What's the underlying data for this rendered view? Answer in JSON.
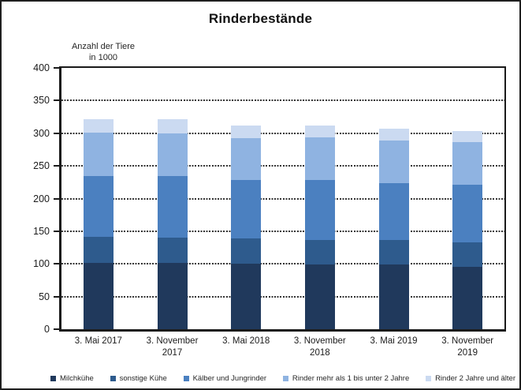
{
  "chart": {
    "title": "Rinderbestände",
    "unit_label_line1": "Anzahl der Tiere",
    "unit_label_line2": "in 1000"
  },
  "chart_data": {
    "type": "bar",
    "stacked": true,
    "title": "Rinderbestände",
    "ylabel": "Anzahl der Tiere in 1000",
    "xlabel": "",
    "ylim": [
      0,
      400
    ],
    "yticks": [
      0,
      50,
      100,
      150,
      200,
      250,
      300,
      350,
      400
    ],
    "grid": "horizontal-dotted",
    "legend_position": "bottom",
    "categories": [
      "3. Mai 2017",
      "3. November 2017",
      "3. Mai 2018",
      "3. November 2018",
      "3. Mai 2019",
      "3. November 2019"
    ],
    "series": [
      {
        "name": "Milchkühe",
        "color": "#20395C",
        "values": [
          102,
          102,
          100,
          99,
          99,
          96
        ]
      },
      {
        "name": "sonstige Kühe",
        "color": "#2E5B8D",
        "values": [
          39,
          38,
          39,
          38,
          38,
          37
        ]
      },
      {
        "name": "Kälber und Jungrinder",
        "color": "#4B80C0",
        "values": [
          93,
          94,
          90,
          92,
          86,
          88
        ]
      },
      {
        "name": "Rinder mehr als 1 bis unter 2 Jahre",
        "color": "#8FB3E1",
        "values": [
          67,
          66,
          63,
          65,
          66,
          66
        ]
      },
      {
        "name": "Rinder 2 Jahre und älter",
        "color": "#CBDAF1",
        "values": [
          21,
          22,
          20,
          18,
          18,
          16
        ]
      }
    ]
  }
}
